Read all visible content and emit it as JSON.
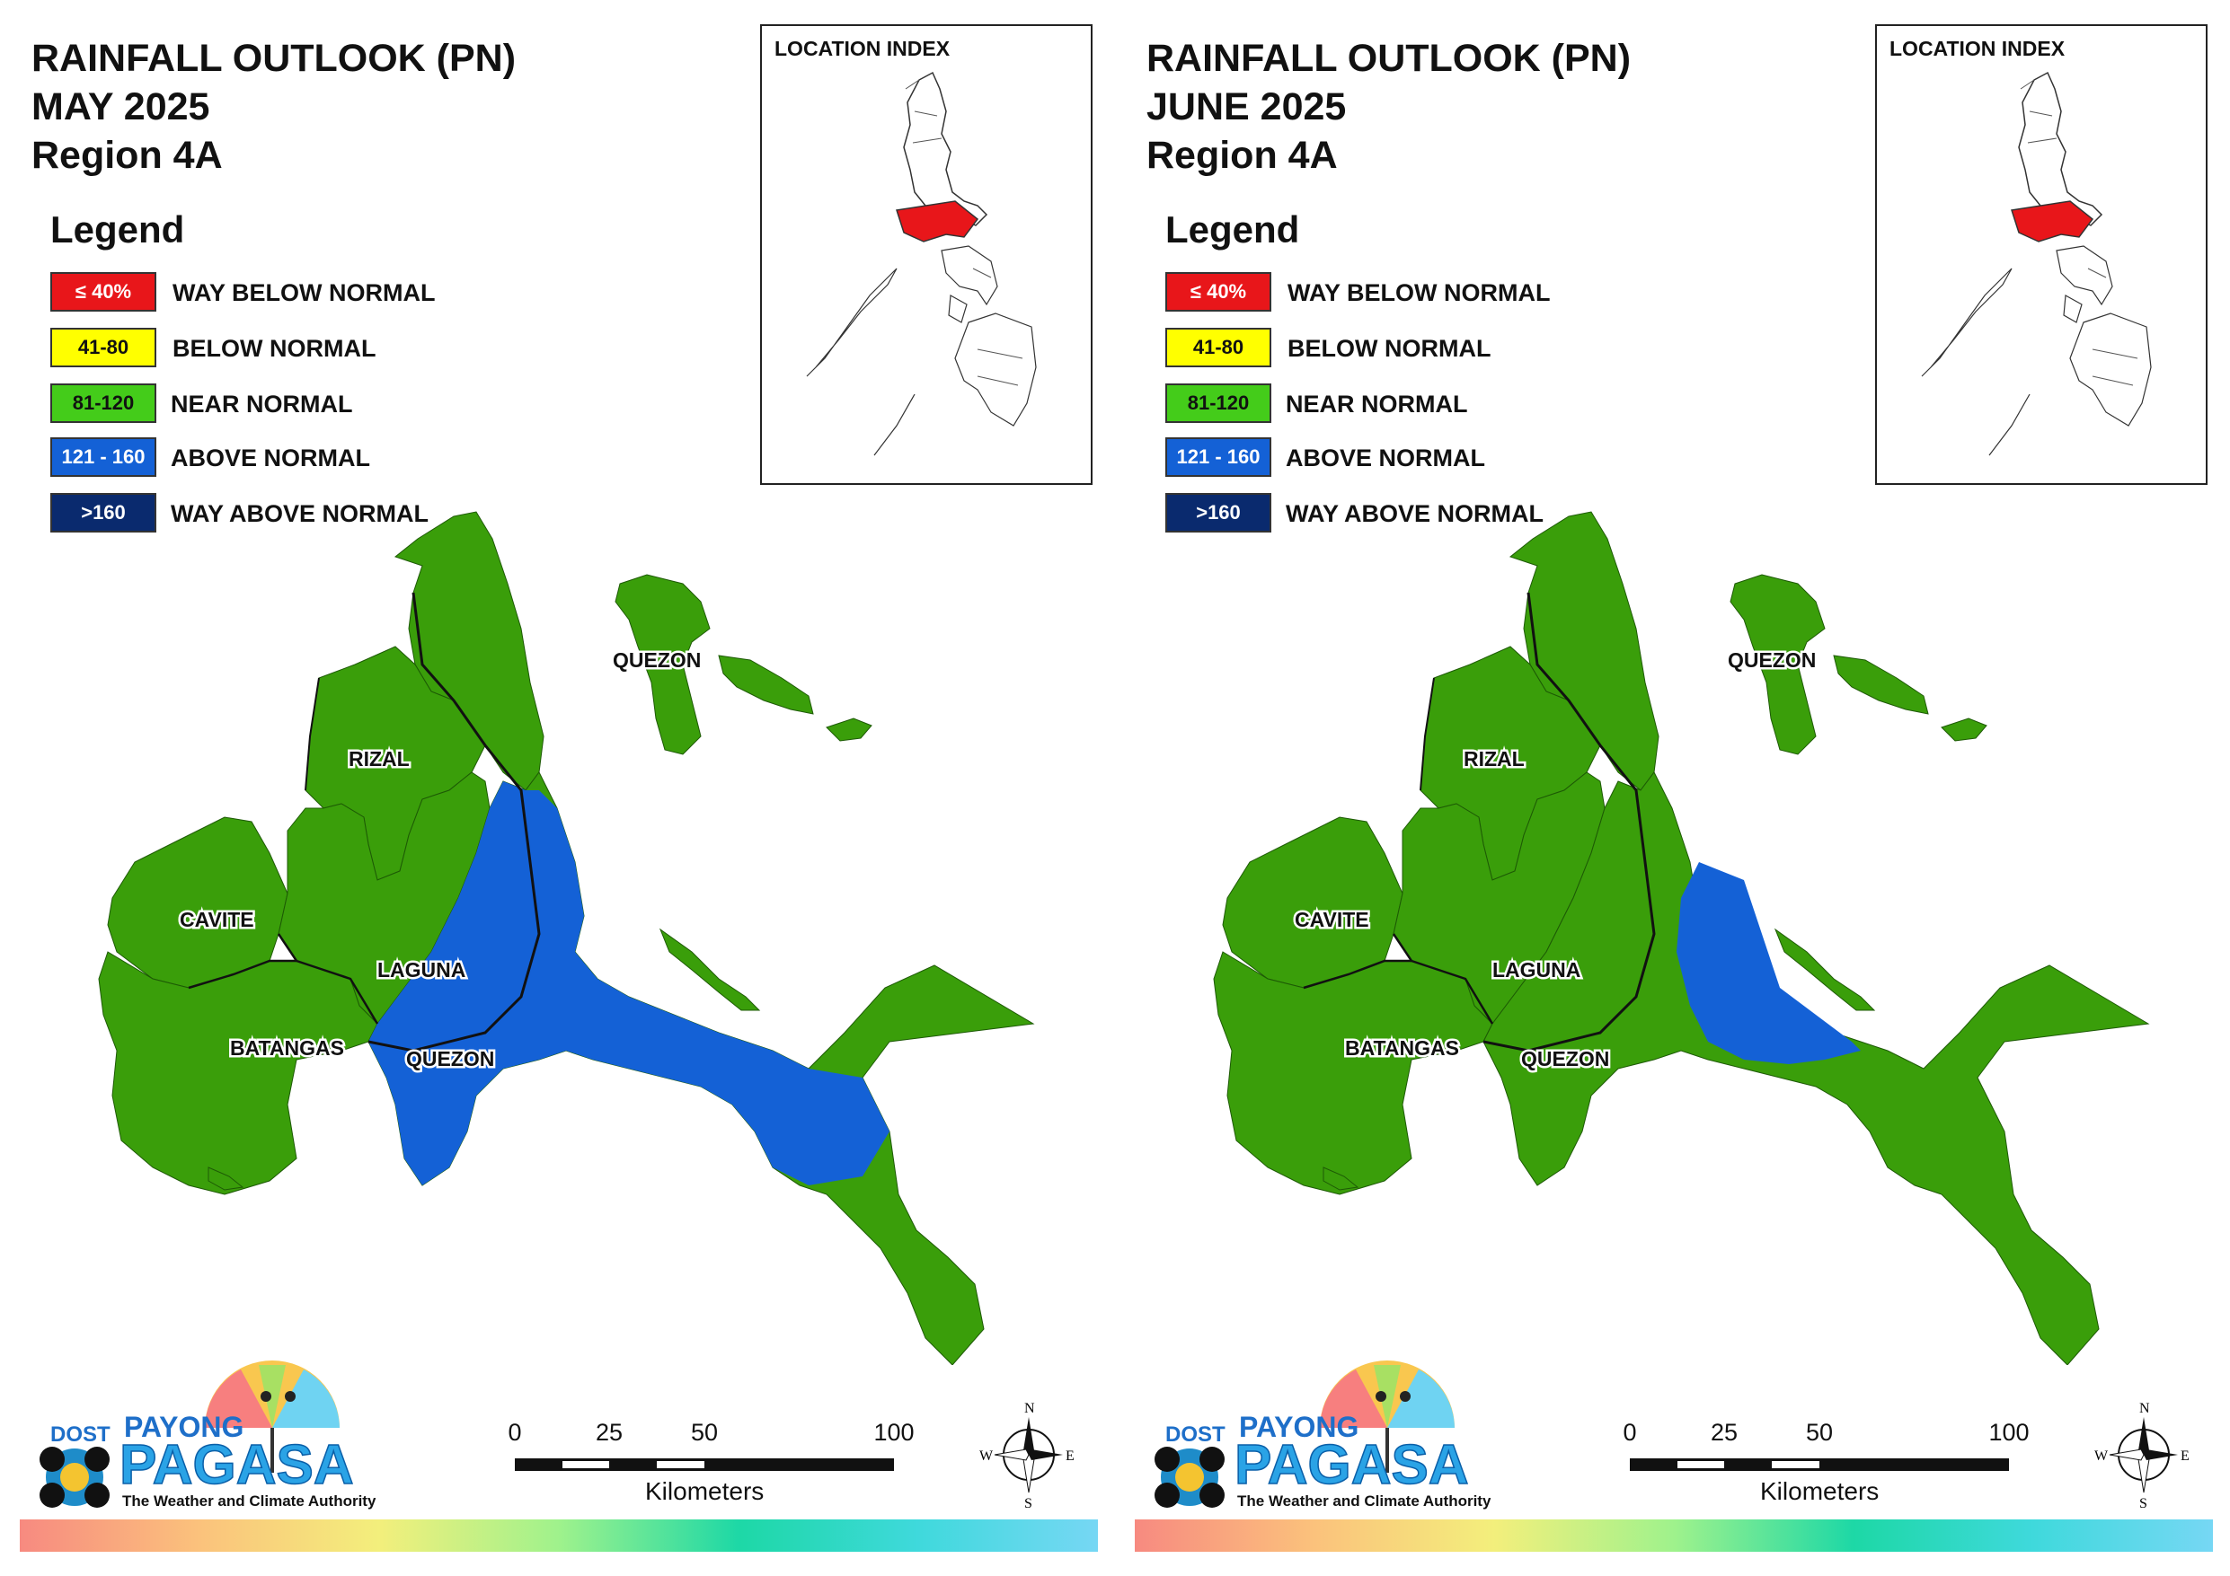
{
  "panels": [
    {
      "title_line1": "RAINFALL OUTLOOK (PN)",
      "title_line2": "MAY 2025",
      "title_line3": "Region 4A",
      "dominant_class": "near_normal",
      "secondary_class": "above_normal"
    },
    {
      "title_line1": "RAINFALL OUTLOOK (PN)",
      "title_line2": "JUNE 2025",
      "title_line3": "Region 4A",
      "dominant_class": "near_normal",
      "secondary_class": "above_normal"
    }
  ],
  "legend": {
    "title": "Legend",
    "items": [
      {
        "range": "≤ 40%",
        "label": "WAY BELOW NORMAL",
        "color": "#e8161a",
        "text_color": "#ffffff"
      },
      {
        "range": "41-80",
        "label": "BELOW NORMAL",
        "color": "#ffff00",
        "text_color": "#111111"
      },
      {
        "range": "81-120",
        "label": "NEAR NORMAL",
        "color": "#44cc1a",
        "text_color": "#111111"
      },
      {
        "range": "121 - 160",
        "label": "ABOVE NORMAL",
        "color": "#1461d6",
        "text_color": "#ffffff"
      },
      {
        "range": ">160",
        "label": "WAY ABOVE NORMAL",
        "color": "#0a2a6e",
        "text_color": "#ffffff"
      }
    ]
  },
  "location_index": {
    "label": "LOCATION INDEX",
    "highlight_color": "#e8161a"
  },
  "provinces": [
    "QUEZON",
    "RIZAL",
    "CAVITE",
    "LAGUNA",
    "BATANGAS",
    "QUEZON"
  ],
  "map_colors": {
    "near_normal": "#3a9e0a",
    "above_normal": "#1461d6",
    "border": "#111111"
  },
  "scale_bar": {
    "ticks": [
      "0",
      "25",
      "50",
      "100"
    ],
    "unit": "Kilometers"
  },
  "compass": {
    "n": "N",
    "s": "S",
    "e": "E",
    "w": "W"
  },
  "logo": {
    "dost": "DOST",
    "payong": "PAYONG",
    "pagasa": "PAGASA",
    "tagline": "The Weather and Climate Authority"
  }
}
